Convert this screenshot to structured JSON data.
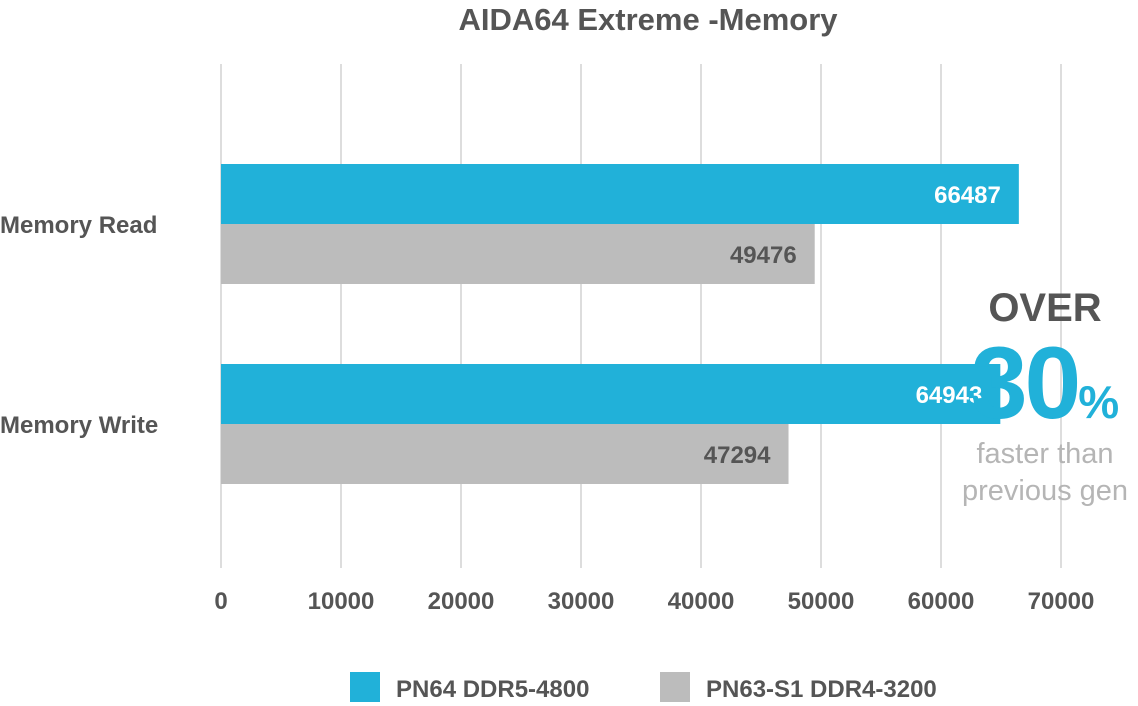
{
  "chart_data": {
    "type": "bar",
    "orientation": "horizontal",
    "title": "AIDA64 Extreme -Memory",
    "categories": [
      "Memory Read",
      "Memory Write"
    ],
    "series": [
      {
        "name": "PN64 DDR5-4800",
        "values": [
          66487,
          64943
        ],
        "color": "#21b1d9"
      },
      {
        "name": "PN63-S1 DDR4-3200",
        "values": [
          49476,
          47294
        ],
        "color": "#bcbcbc"
      }
    ],
    "xlim": [
      0,
      70000
    ],
    "ticks": [
      0,
      10000,
      20000,
      30000,
      40000,
      50000,
      60000,
      70000
    ],
    "grid": true,
    "legend_position": "bottom"
  },
  "callout": {
    "line1": "OVER",
    "number": "30",
    "sign": "%",
    "line2": "faster than",
    "line3": "previous gen"
  },
  "colors": {
    "accent": "#21b1d9",
    "secondary": "#bcbcbc",
    "text": "#555555",
    "grid": "#dddddd"
  }
}
